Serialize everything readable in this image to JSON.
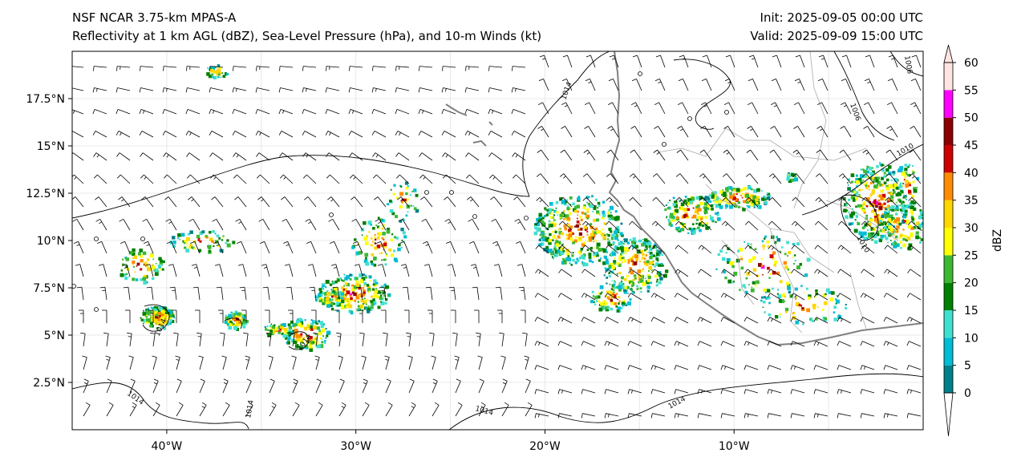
{
  "header": {
    "title_left_1": "NSF NCAR 3.75-km MPAS-A",
    "title_left_2": "Reflectivity at 1 km AGL (dBZ), Sea-Level Pressure (hPa), and 10-m Winds (kt)",
    "title_right_1": "Init: 2025-09-05 00:00 UTC",
    "title_right_2": "Valid: 2025-09-09 15:00 UTC"
  },
  "map": {
    "extent": {
      "lon": [
        -45,
        0
      ],
      "lat": [
        0,
        20
      ]
    },
    "lat_ticks": [
      {
        "value": 2.5,
        "label": "2.5°N"
      },
      {
        "value": 5,
        "label": "5°N"
      },
      {
        "value": 7.5,
        "label": "7.5°N"
      },
      {
        "value": 10,
        "label": "10°N"
      },
      {
        "value": 12.5,
        "label": "12.5°N"
      },
      {
        "value": 15,
        "label": "15°N"
      },
      {
        "value": 17.5,
        "label": "17.5°N"
      }
    ],
    "lon_ticks": [
      {
        "value": -40,
        "label": "40°W"
      },
      {
        "value": -30,
        "label": "30°W"
      },
      {
        "value": -20,
        "label": "20°W"
      },
      {
        "value": -10,
        "label": "10°W"
      }
    ],
    "isobar_labels": [
      "1014",
      "1014",
      "1014",
      "1014",
      "1014",
      "1014",
      "1014",
      "1010",
      "1010",
      "1006",
      "1006",
      "1010",
      "1014"
    ],
    "colors": {
      "coastline": "#808080",
      "isobar": "#000000",
      "border": "#aaaaaa",
      "grid": "#e8e8e8"
    }
  },
  "colorbar": {
    "label": "dBZ",
    "tick_labels": [
      "0",
      "5",
      "10",
      "15",
      "20",
      "25",
      "30",
      "35",
      "40",
      "45",
      "50",
      "55",
      "60"
    ],
    "colors": [
      "#00808a",
      "#00bcd4",
      "#40e0d0",
      "#008000",
      "#3cb832",
      "#ffff00",
      "#ffd700",
      "#ff8c00",
      "#cc0000",
      "#8b0000",
      "#ff00ff",
      "#ffe4e1"
    ]
  }
}
